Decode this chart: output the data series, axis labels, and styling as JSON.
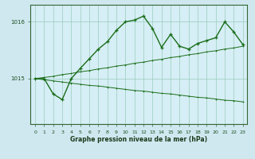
{
  "title": "Graphe pression niveau de la mer (hPa)",
  "bg_color": "#cfe8f0",
  "plot_bg_color": "#d6eef5",
  "line_color": "#1a6e1a",
  "grid_color": "#99ccbb",
  "xlim": [
    -0.5,
    23.5
  ],
  "ylim": [
    1014.2,
    1016.3
  ],
  "yticks": [
    1015,
    1016
  ],
  "xticks": [
    0,
    1,
    2,
    3,
    4,
    5,
    6,
    7,
    8,
    9,
    10,
    11,
    12,
    13,
    14,
    15,
    16,
    17,
    18,
    19,
    20,
    21,
    22,
    23
  ],
  "hours": [
    0,
    1,
    2,
    3,
    4,
    5,
    6,
    7,
    8,
    9,
    10,
    11,
    12,
    13,
    14,
    15,
    16,
    17,
    18,
    19,
    20,
    21,
    22,
    23
  ],
  "spiky": [
    1015.0,
    1015.0,
    1014.73,
    1014.63,
    1015.0,
    1015.18,
    1015.35,
    1015.52,
    1015.65,
    1015.85,
    1016.0,
    1016.03,
    1016.1,
    1015.88,
    1015.55,
    1015.78,
    1015.57,
    1015.52,
    1015.62,
    1015.67,
    1015.72,
    1016.0,
    1015.82,
    1015.6
  ],
  "upper_trend": [
    1015.0,
    1015.02,
    1015.04,
    1015.07,
    1015.09,
    1015.12,
    1015.14,
    1015.17,
    1015.19,
    1015.22,
    1015.24,
    1015.27,
    1015.29,
    1015.32,
    1015.34,
    1015.37,
    1015.39,
    1015.42,
    1015.44,
    1015.47,
    1015.49,
    1015.52,
    1015.54,
    1015.57
  ],
  "lower_trend": [
    1015.0,
    1014.98,
    1014.96,
    1014.94,
    1014.92,
    1014.9,
    1014.88,
    1014.87,
    1014.85,
    1014.83,
    1014.81,
    1014.79,
    1014.78,
    1014.76,
    1014.74,
    1014.73,
    1014.71,
    1014.69,
    1014.67,
    1014.66,
    1014.64,
    1014.62,
    1014.61,
    1014.59
  ],
  "label_fontsize": 5.5,
  "tick_fontsize": 4.5
}
